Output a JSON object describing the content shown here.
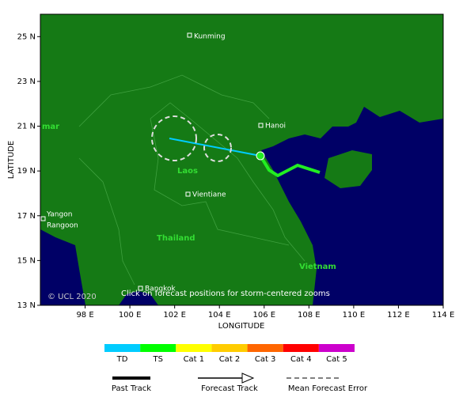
{
  "map": {
    "axis": {
      "y_label": "LATITUDE",
      "x_label": "LONGITUDE",
      "lat_ticks": [
        {
          "value": 25,
          "label": "25 N"
        },
        {
          "value": 23,
          "label": "23 N"
        },
        {
          "value": 21,
          "label": "21 N"
        },
        {
          "value": 19,
          "label": "19 N"
        },
        {
          "value": 17,
          "label": "17 N"
        },
        {
          "value": 15,
          "label": "15 N"
        },
        {
          "value": 13,
          "label": "13 N"
        }
      ],
      "lon_ticks": [
        {
          "value": 98,
          "label": "98 E"
        },
        {
          "value": 100,
          "label": "100 E"
        },
        {
          "value": 102,
          "label": "102 E"
        },
        {
          "value": 104,
          "label": "104 E"
        },
        {
          "value": 106,
          "label": "106 E"
        },
        {
          "value": 108,
          "label": "108 E"
        },
        {
          "value": 110,
          "label": "110 E"
        },
        {
          "value": 112,
          "label": "112 E"
        },
        {
          "value": 114,
          "label": "114 E"
        }
      ]
    },
    "places": {
      "kunming": "Kunming",
      "hanoi": "Hanoi",
      "vientiane": "Vientiane",
      "bangkok": "Bangkok",
      "yangon": "Yangon",
      "rangoon": "Rangoon",
      "myanmar": "mar",
      "laos": "Laos",
      "thailand": "Thailand",
      "vietnam": "Vietnam"
    },
    "copyright": "© UCL 2020",
    "hint": "Click on forecast positions for storm-centered zooms"
  },
  "legend": {
    "intensity": [
      {
        "label": "TD",
        "color": "#00ccff"
      },
      {
        "label": "TS",
        "color": "#00ff00"
      },
      {
        "label": "Cat 1",
        "color": "#ffff00"
      },
      {
        "label": "Cat 2",
        "color": "#ffcc00"
      },
      {
        "label": "Cat 3",
        "color": "#ff6600"
      },
      {
        "label": "Cat 4",
        "color": "#ff0000"
      },
      {
        "label": "Cat 5",
        "color": "#cc00cc"
      }
    ],
    "past_track": "Past Track",
    "forecast_track": "Forecast Track",
    "mean_error": "Mean Forecast Error"
  }
}
